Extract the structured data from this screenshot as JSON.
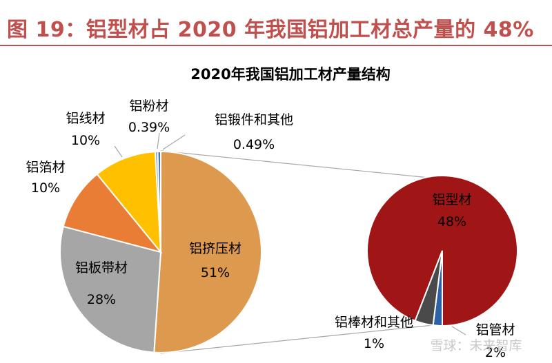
{
  "header": {
    "caption": "图 19：铝型材占 2020 年我国铝加工材总产量的 48%"
  },
  "watermark": "雪球：未来智库",
  "colors": {
    "caption": "#c0504d",
    "extrusion": "#dd9a4f",
    "plate": "#a6a6a6",
    "foil": "#ea7d35",
    "wire": "#ffc000",
    "powder": "#5b9bd5",
    "forging": "#4472c4",
    "profile": "#a01616",
    "rod": "#2e62a8",
    "tube": "#4a4a4a"
  },
  "chart_data": [
    {
      "type": "pie",
      "title": "2020年我国铝加工材产量结构",
      "slices": [
        {
          "name": "铝挤压材",
          "value": 51,
          "label": "51%"
        },
        {
          "name": "铝板带材",
          "value": 28,
          "label": "28%"
        },
        {
          "name": "铝箔材",
          "value": 10,
          "label": "10%"
        },
        {
          "name": "铝线材",
          "value": 10,
          "label": "10%"
        },
        {
          "name": "铝粉材",
          "value": 0.39,
          "label": "0.39%"
        },
        {
          "name": "铝锻件和其他",
          "value": 0.49,
          "label": "0.49%"
        }
      ]
    },
    {
      "type": "pie",
      "title": "",
      "breakdown_of": "铝挤压材",
      "slices": [
        {
          "name": "铝型材",
          "value": 48,
          "label": "48%"
        },
        {
          "name": "铝棒材和其他",
          "value": 1,
          "label": "1%"
        },
        {
          "name": "铝管材",
          "value": 2,
          "label": "2%"
        }
      ]
    }
  ]
}
